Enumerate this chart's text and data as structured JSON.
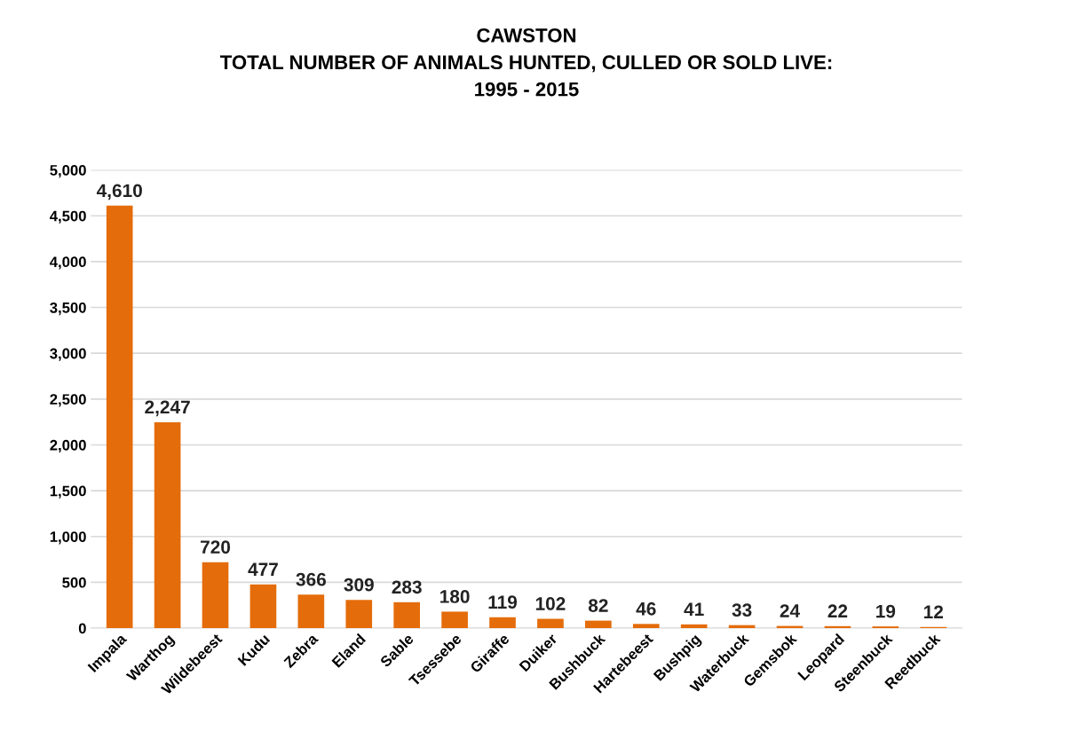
{
  "chart_data": {
    "type": "bar",
    "title": "CAWSTON\nTOTAL NUMBER OF ANIMALS HUNTED, CULLED OR SOLD LIVE:\n1995 - 2015",
    "categories": [
      "Impala",
      "Warthog",
      "Wildebeest",
      "Kudu",
      "Zebra",
      "Eland",
      "Sable",
      "Tsessebe",
      "Giraffe",
      "Duiker",
      "Bushbuck",
      "Hartebeest",
      "Bushpig",
      "Waterbuck",
      "Gemsbok",
      "Leopard",
      "Steenbuck",
      "Reedbuck"
    ],
    "values": [
      4610,
      2247,
      720,
      477,
      366,
      309,
      283,
      180,
      119,
      102,
      82,
      46,
      41,
      33,
      24,
      22,
      19,
      12
    ],
    "value_labels": [
      "4,610",
      "2,247",
      "720",
      "477",
      "366",
      "309",
      "283",
      "180",
      "119",
      "102",
      "82",
      "46",
      "41",
      "33",
      "24",
      "22",
      "19",
      "12"
    ],
    "color": "#e46c0a",
    "ylim": [
      0,
      5000
    ],
    "yticks": [
      0,
      {
        "value": 500,
        "label": "500"
      },
      {
        "value": 1000,
        "label": "1,000"
      },
      {
        "value": 1500,
        "label": "1,500"
      },
      {
        "value": 2000,
        "label": "2,000"
      },
      {
        "value": 2500,
        "label": "2,500"
      },
      {
        "value": 3000,
        "label": "3,000"
      },
      {
        "value": 3500,
        "label": "3,500"
      },
      {
        "value": 4000,
        "label": "4,000"
      },
      {
        "value": 4500,
        "label": "4,500"
      },
      {
        "value": 5000,
        "label": "5,000"
      }
    ],
    "grid": "y"
  }
}
